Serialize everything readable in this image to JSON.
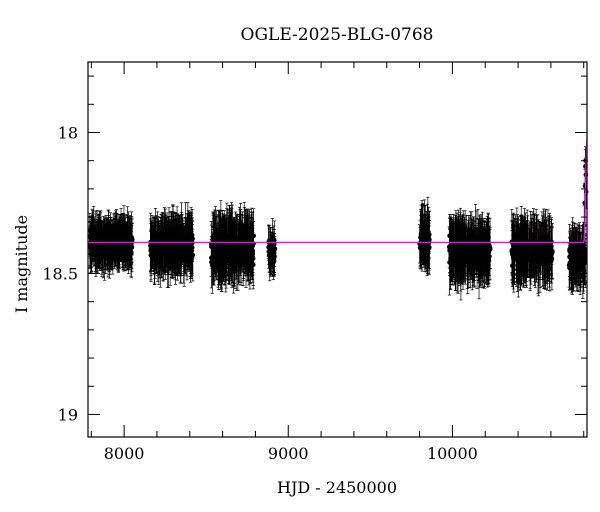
{
  "chart_data": {
    "type": "scatter",
    "title": "OGLE-2025-BLG-0768",
    "xlabel": "HJD - 2450000",
    "ylabel": "I magnitude",
    "xlim": [
      7780,
      10820
    ],
    "ylim": [
      19.08,
      17.75
    ],
    "y_inverted": true,
    "x_ticks": [
      8000,
      9000,
      10000
    ],
    "x_tick_labels": [
      "8000",
      "9000",
      "10000"
    ],
    "y_ticks": [
      18,
      18.5,
      19
    ],
    "y_tick_labels": [
      "18",
      "18.5",
      "19"
    ],
    "grid": false,
    "legend": "none",
    "colors": {
      "points": "#000000",
      "model": "#ff00ff"
    },
    "observing_seasons": [
      {
        "x_start": 7790,
        "x_end": 8050,
        "mag_center": 18.39,
        "mag_spread": 0.06,
        "error": 0.07,
        "n": 300
      },
      {
        "x_start": 8160,
        "x_end": 8420,
        "mag_center": 18.4,
        "mag_spread": 0.07,
        "error": 0.08,
        "n": 280
      },
      {
        "x_start": 8530,
        "x_end": 8790,
        "mag_center": 18.41,
        "mag_spread": 0.07,
        "error": 0.09,
        "n": 280
      },
      {
        "x_start": 8880,
        "x_end": 8920,
        "mag_center": 18.43,
        "mag_spread": 0.07,
        "error": 0.06,
        "n": 40
      },
      {
        "x_start": 9800,
        "x_end": 9860,
        "mag_center": 18.38,
        "mag_spread": 0.07,
        "error": 0.08,
        "n": 60
      },
      {
        "x_start": 9980,
        "x_end": 10230,
        "mag_center": 18.42,
        "mag_spread": 0.07,
        "error": 0.09,
        "n": 250
      },
      {
        "x_start": 10360,
        "x_end": 10610,
        "mag_center": 18.42,
        "mag_spread": 0.07,
        "error": 0.09,
        "n": 250
      },
      {
        "x_start": 10710,
        "x_end": 10810,
        "mag_center": 18.44,
        "mag_spread": 0.07,
        "error": 0.08,
        "n": 110
      }
    ],
    "rising_points": [
      {
        "x": 10803,
        "y": 18.33,
        "err": 0.07
      },
      {
        "x": 10806,
        "y": 18.25,
        "err": 0.07
      },
      {
        "x": 10808,
        "y": 18.19,
        "err": 0.06
      },
      {
        "x": 10810,
        "y": 18.12,
        "err": 0.06
      },
      {
        "x": 10811,
        "y": 18.1,
        "err": 0.05
      },
      {
        "x": 10813,
        "y": 18.15,
        "err": 0.06
      },
      {
        "x": 10815,
        "y": 18.21,
        "err": 0.06
      }
    ],
    "model": {
      "name": "",
      "x": [
        7780,
        10800,
        10805,
        10808,
        10811,
        10814,
        10817,
        10820
      ],
      "y": [
        18.39,
        18.39,
        18.37,
        18.31,
        18.22,
        18.13,
        18.06,
        18.02
      ]
    }
  }
}
